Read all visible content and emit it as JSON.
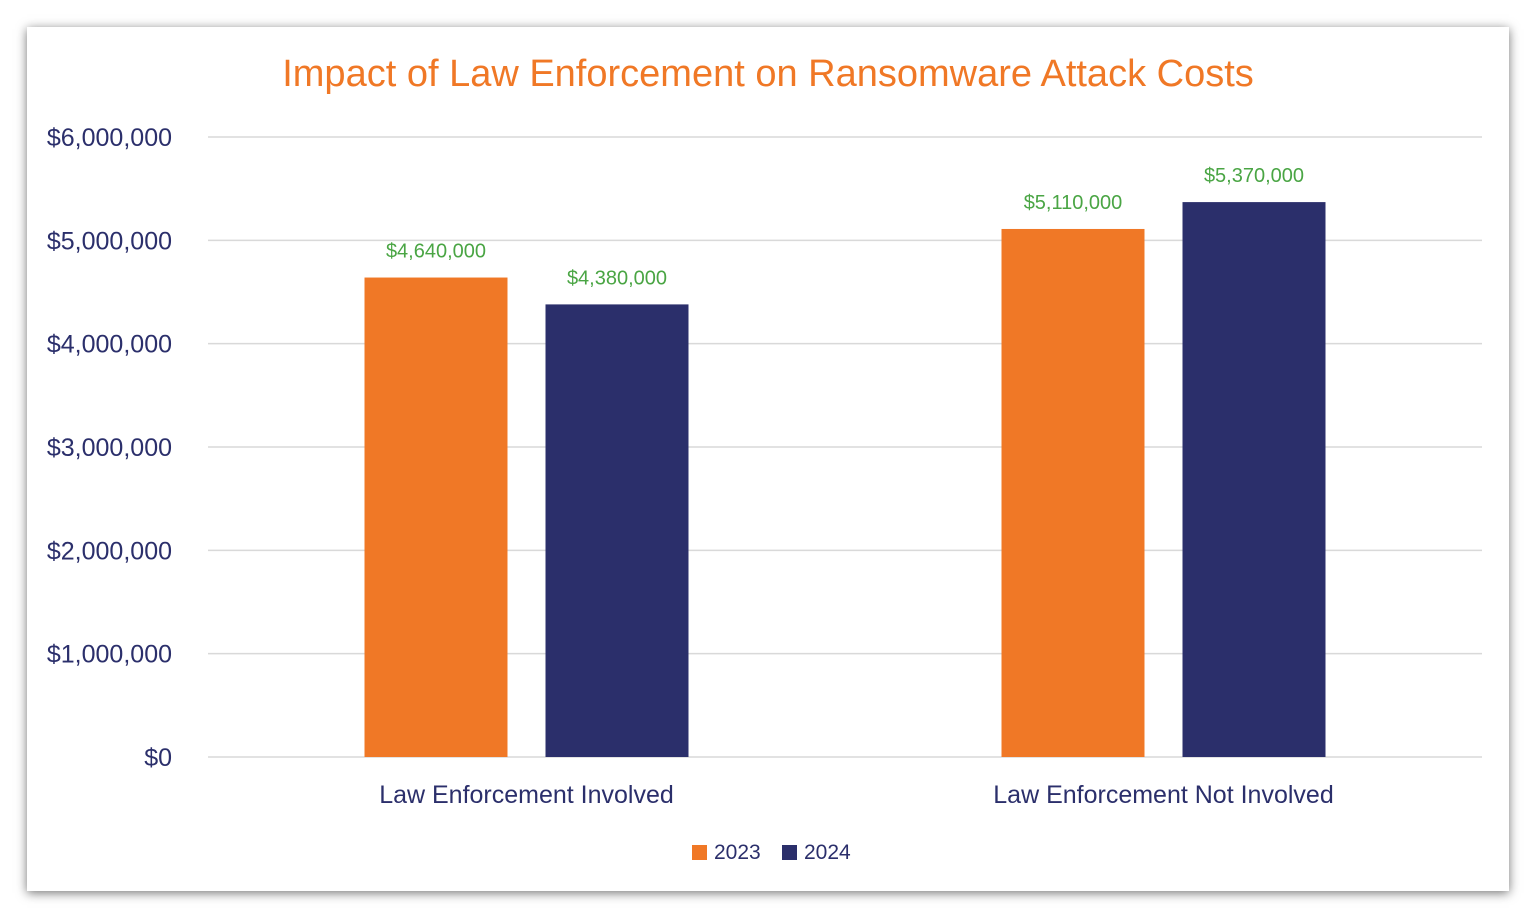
{
  "chart_data": {
    "type": "bar",
    "title": "Impact of Law Enforcement on Ransomware Attack Costs",
    "xlabel": "",
    "ylabel": "",
    "categories": [
      "Law Enforcement Involved",
      "Law Enforcement Not Involved"
    ],
    "series": [
      {
        "name": "2023",
        "color": "#f07826",
        "values": [
          4640000,
          5110000
        ],
        "labels": [
          "$4,640,000",
          "$5,110,000"
        ]
      },
      {
        "name": "2024",
        "color": "#2b2f6b",
        "values": [
          4380000,
          5370000
        ],
        "labels": [
          "$4,380,000",
          "$5,370,000"
        ]
      }
    ],
    "ylim": [
      0,
      6000000
    ],
    "yticks": [
      0,
      1000000,
      2000000,
      3000000,
      4000000,
      5000000,
      6000000
    ],
    "ytick_labels": [
      "$0",
      "$1,000,000",
      "$2,000,000",
      "$3,000,000",
      "$4,000,000",
      "$5,000,000",
      "$6,000,000"
    ],
    "grid": true,
    "legend_position": "bottom",
    "data_label_color": "#4aa544"
  }
}
